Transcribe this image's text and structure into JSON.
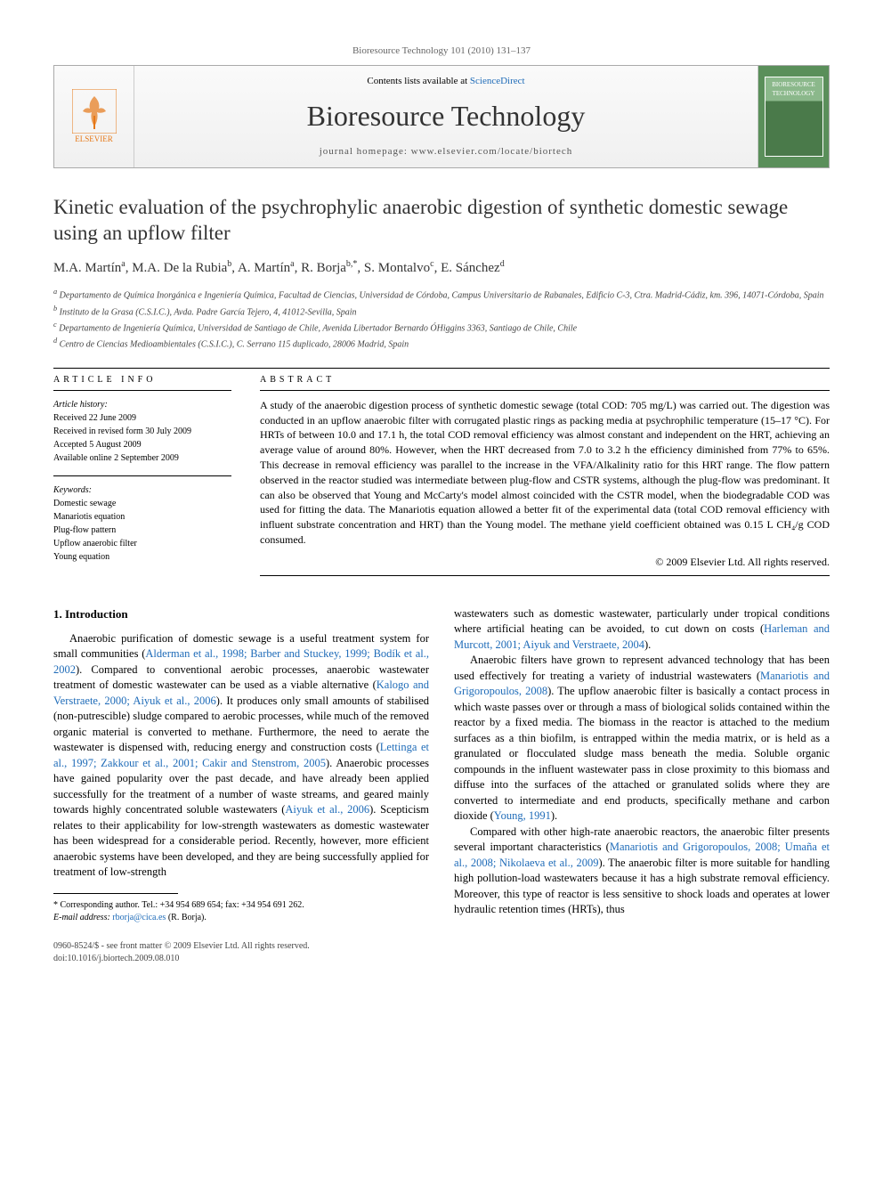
{
  "header": {
    "citation": "Bioresource Technology 101 (2010) 131–137"
  },
  "masthead": {
    "publisher": "ELSEVIER",
    "contents_prefix": "Contents lists available at ",
    "contents_link": "ScienceDirect",
    "journal": "Bioresource Technology",
    "homepage_prefix": "journal homepage: ",
    "homepage_url": "www.elsevier.com/locate/biortech",
    "cover_label": "BIORESOURCE TECHNOLOGY"
  },
  "article": {
    "title": "Kinetic evaluation of the psychrophylic anaerobic digestion of synthetic domestic sewage using an upflow filter",
    "authors_html": "M.A. Martín<sup>a</sup>, M.A. De la Rubia<sup>b</sup>, A. Martín<sup>a</sup>, R. Borja<sup>b,*</sup>, S. Montalvo<sup>c</sup>, E. Sánchez<sup>d</sup>",
    "affiliations": [
      "<sup>a</sup> Departamento de Química Inorgánica e Ingeniería Química, Facultad de Ciencias, Universidad de Córdoba, Campus Universitario de Rabanales, Edificio C-3, Ctra. Madrid-Cádiz, km. 396, 14071-Córdoba, Spain",
      "<sup>b</sup> Instituto de la Grasa (C.S.I.C.), Avda. Padre García Tejero, 4, 41012-Sevilla, Spain",
      "<sup>c</sup> Departamento de Ingeniería Química, Universidad de Santiago de Chile, Avenida Libertador Bernardo ÓHiggins 3363, Santiago de Chile, Chile",
      "<sup>d</sup> Centro de Ciencias Medioambientales (C.S.I.C.), C. Serrano 115 duplicado, 28006 Madrid, Spain"
    ]
  },
  "info": {
    "heading": "ARTICLE INFO",
    "history_label": "Article history:",
    "history": [
      "Received 22 June 2009",
      "Received in revised form 30 July 2009",
      "Accepted 5 August 2009",
      "Available online 2 September 2009"
    ],
    "keywords_label": "Keywords:",
    "keywords": [
      "Domestic sewage",
      "Manariotis equation",
      "Plug-flow pattern",
      "Upflow anaerobic filter",
      "Young equation"
    ]
  },
  "abstract": {
    "heading": "ABSTRACT",
    "text": "A study of the anaerobic digestion process of synthetic domestic sewage (total COD: 705 mg/L) was carried out. The digestion was conducted in an upflow anaerobic filter with corrugated plastic rings as packing media at psychrophilic temperature (15–17 °C). For HRTs of between 10.0 and 17.1 h, the total COD removal efficiency was almost constant and independent on the HRT, achieving an average value of around 80%. However, when the HRT decreased from 7.0 to 3.2 h the efficiency diminished from 77% to 65%. This decrease in removal efficiency was parallel to the increase in the VFA/Alkalinity ratio for this HRT range. The flow pattern observed in the reactor studied was intermediate between plug-flow and CSTR systems, although the plug-flow was predominant. It can also be observed that Young and McCarty's model almost coincided with the CSTR model, when the biodegradable COD was used for fitting the data. The Manariotis equation allowed a better fit of the experimental data (total COD removal efficiency with influent substrate concentration and HRT) than the Young model. The methane yield coefficient obtained was 0.15 L CH₄/g COD consumed.",
    "copyright": "© 2009 Elsevier Ltd. All rights reserved."
  },
  "body": {
    "section_head": "1. Introduction",
    "col1_p1": "Anaerobic purification of domestic sewage is a useful treatment system for small communities (<span class='ref'>Alderman et al., 1998; Barber and Stuckey, 1999; Bodík et al., 2002</span>). Compared to conventional aerobic processes, anaerobic wastewater treatment of domestic wastewater can be used as a viable alternative (<span class='ref'>Kalogo and Verstraete, 2000; Aiyuk et al., 2006</span>). It produces only small amounts of stabilised (non-putrescible) sludge compared to aerobic processes, while much of the removed organic material is converted to methane. Furthermore, the need to aerate the wastewater is dispensed with, reducing energy and construction costs (<span class='ref'>Lettinga et al., 1997; Zakkour et al., 2001; Cakir and Stenstrom, 2005</span>). Anaerobic processes have gained popularity over the past decade, and have already been applied successfully for the treatment of a number of waste streams, and geared mainly towards highly concentrated soluble wastewaters (<span class='ref'>Aiyuk et al., 2006</span>). Scepticism relates to their applicability for low-strength wastewaters as domestic wastewater has been widespread for a considerable period. Recently, however, more efficient anaerobic systems have been developed, and they are being successfully applied for treatment of low-strength",
    "col2_p1": "wastewaters such as domestic wastewater, particularly under tropical conditions where artificial heating can be avoided, to cut down on costs (<span class='ref'>Harleman and Murcott, 2001; Aiyuk and Verstraete, 2004</span>).",
    "col2_p2": "Anaerobic filters have grown to represent advanced technology that has been used effectively for treating a variety of industrial wastewaters (<span class='ref'>Manariotis and Grigoropoulos, 2008</span>). The upflow anaerobic filter is basically a contact process in which waste passes over or through a mass of biological solids contained within the reactor by a fixed media. The biomass in the reactor is attached to the medium surfaces as a thin biofilm, is entrapped within the media matrix, or is held as a granulated or flocculated sludge mass beneath the media. Soluble organic compounds in the influent wastewater pass in close proximity to this biomass and diffuse into the surfaces of the attached or granulated solids where they are converted to intermediate and end products, specifically methane and carbon dioxide (<span class='ref'>Young, 1991</span>).",
    "col2_p3": "Compared with other high-rate anaerobic reactors, the anaerobic filter presents several important characteristics (<span class='ref'>Manariotis and Grigoropoulos, 2008; Umaña et al., 2008; Nikolaeva et al., 2009</span>). The anaerobic filter is more suitable for handling high pollution-load wastewaters because it has a high substrate removal efficiency. Moreover, this type of reactor is less sensitive to shock loads and operates at lower hydraulic retention times (HRTs), thus"
  },
  "footnotes": {
    "corr": "* Corresponding author. Tel.: +34 954 689 654; fax: +34 954 691 262.",
    "email_label": "E-mail address:",
    "email": "rborja@cica.es",
    "email_person": " (R. Borja)."
  },
  "footer": {
    "line1": "0960-8524/$ - see front matter © 2009 Elsevier Ltd. All rights reserved.",
    "line2": "doi:10.1016/j.biortech.2009.08.010"
  },
  "colors": {
    "link": "#1e6bb8",
    "publisher": "#e67817",
    "cover_bg": "#5a8f5a"
  }
}
